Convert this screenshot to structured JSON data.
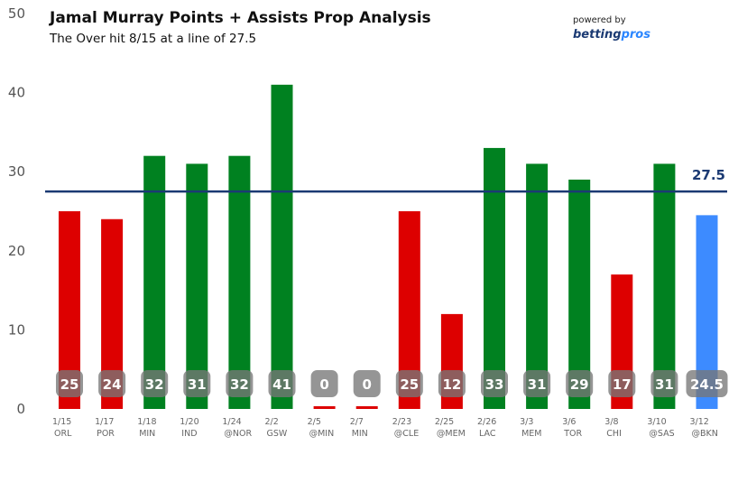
{
  "chart_data": {
    "type": "bar",
    "title": "Jamal Murray Points + Assists Prop Analysis",
    "subtitle": "The Over hit 8/15 at a line of 27.5",
    "categories": [
      {
        "date": "1/15",
        "opp": "ORL"
      },
      {
        "date": "1/17",
        "opp": "POR"
      },
      {
        "date": "1/18",
        "opp": "MIN"
      },
      {
        "date": "1/20",
        "opp": "IND"
      },
      {
        "date": "1/24",
        "opp": "@NOR"
      },
      {
        "date": "2/2",
        "opp": "GSW"
      },
      {
        "date": "2/5",
        "opp": "@MIN"
      },
      {
        "date": "2/7",
        "opp": "MIN"
      },
      {
        "date": "2/23",
        "opp": "@CLE"
      },
      {
        "date": "2/25",
        "opp": "@MEM"
      },
      {
        "date": "2/26",
        "opp": "LAC"
      },
      {
        "date": "3/3",
        "opp": "MEM"
      },
      {
        "date": "3/6",
        "opp": "TOR"
      },
      {
        "date": "3/8",
        "opp": "CHI"
      },
      {
        "date": "3/10",
        "opp": "@SAS"
      },
      {
        "date": "3/12",
        "opp": "@BKN"
      }
    ],
    "values": [
      25,
      24,
      32,
      31,
      32,
      41,
      0,
      0,
      25,
      12,
      33,
      31,
      29,
      17,
      31,
      24.5
    ],
    "labels": [
      "25",
      "24",
      "32",
      "31",
      "32",
      "41",
      "0",
      "0",
      "25",
      "12",
      "33",
      "31",
      "29",
      "17",
      "31",
      "24.5"
    ],
    "status": [
      "under",
      "under",
      "over",
      "over",
      "over",
      "over",
      "under",
      "under",
      "under",
      "under",
      "over",
      "over",
      "over",
      "under",
      "over",
      "projection"
    ],
    "line": 27.5,
    "line_label": "27.5",
    "ylim": [
      0,
      50
    ],
    "yticks": [
      0,
      10,
      20,
      30,
      40,
      50
    ],
    "colors": {
      "over": "#008120",
      "under": "#dd0000",
      "projection": "#3d8bff",
      "line": "#1b3a73",
      "label_box": "#777777"
    }
  },
  "branding": {
    "powered_by": "powered by",
    "logo_main": "betting",
    "logo_accent": "pros"
  }
}
